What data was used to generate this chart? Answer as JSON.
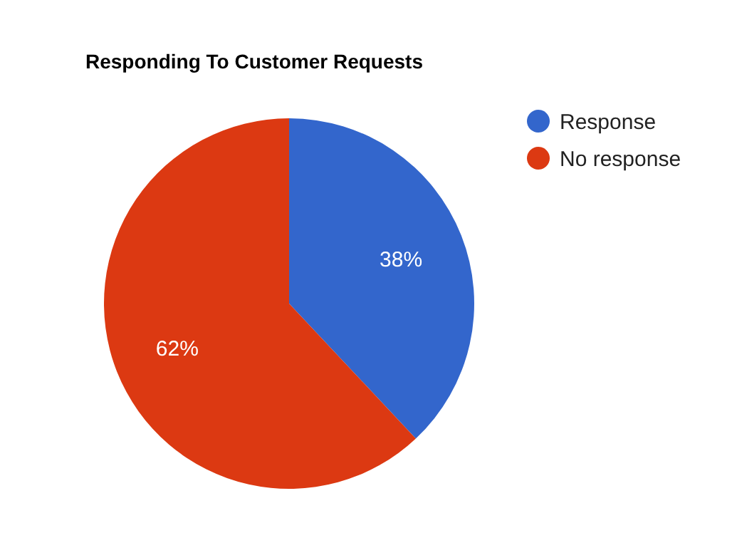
{
  "chart_data": {
    "type": "pie",
    "title": "Responding To Customer Requests",
    "categories": [
      "Response",
      "No response"
    ],
    "values": [
      38,
      62
    ],
    "colors": [
      "#3366cc",
      "#dc3912"
    ],
    "value_labels": [
      "38%",
      "62%"
    ],
    "legend": "top right"
  }
}
